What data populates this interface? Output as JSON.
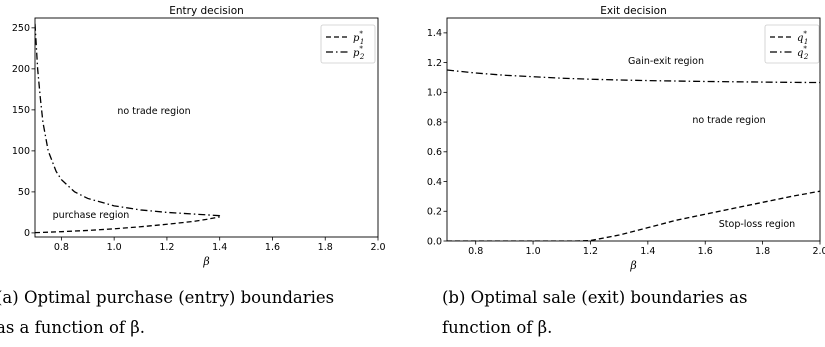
{
  "chart_data": [
    {
      "type": "line",
      "title": "Entry decision",
      "xlabel": "β",
      "ylabel": "",
      "xlim": [
        0.7,
        2.0
      ],
      "ylim": [
        -5,
        262
      ],
      "xticks": [
        "0.8",
        "1.0",
        "1.2",
        "1.4",
        "1.6",
        "1.8",
        "2.0"
      ],
      "yticks": [
        "0",
        "50",
        "100",
        "150",
        "200",
        "250"
      ],
      "legend": {
        "placement": "top-right",
        "entries": [
          {
            "label": "p",
            "sup": "*",
            "sub": "1",
            "dash": "dashed"
          },
          {
            "label": "p",
            "sup": "*",
            "sub": "2",
            "dash": "dashdot"
          }
        ]
      },
      "series": [
        {
          "name": "p1*",
          "dash": "dashed",
          "x": [
            0.7,
            0.8,
            0.9,
            1.0,
            1.1,
            1.2,
            1.3,
            1.35,
            1.4
          ],
          "y": [
            0.3,
            1.5,
            3.0,
            5.0,
            7.5,
            10.5,
            14.0,
            16.5,
            19.5
          ]
        },
        {
          "name": "p2*",
          "dash": "dashdot",
          "x": [
            0.7,
            0.71,
            0.72,
            0.73,
            0.75,
            0.78,
            0.8,
            0.85,
            0.9,
            1.0,
            1.1,
            1.2,
            1.3,
            1.35,
            1.4,
            1.405
          ],
          "y": [
            255,
            200,
            165,
            135,
            100,
            75,
            65,
            50,
            42,
            33,
            28,
            25,
            23,
            22,
            21,
            19.5
          ]
        }
      ],
      "annotations": [
        "no trade region",
        "purchase region"
      ]
    },
    {
      "type": "line",
      "title": "Exit decision",
      "xlabel": "β",
      "ylabel": "",
      "xlim": [
        0.7,
        2.0
      ],
      "ylim": [
        0,
        1.5
      ],
      "xticks": [
        "0.8",
        "1.0",
        "1.2",
        "1.4",
        "1.6",
        "1.8",
        "2.0"
      ],
      "yticks": [
        "0.0",
        "0.2",
        "0.4",
        "0.6",
        "0.8",
        "1.0",
        "1.2",
        "1.4"
      ],
      "legend": {
        "placement": "top-right",
        "entries": [
          {
            "label": "q",
            "sup": "*",
            "sub": "1",
            "dash": "dashed"
          },
          {
            "label": "q",
            "sup": "*",
            "sub": "2",
            "dash": "dashdot"
          }
        ]
      },
      "series": [
        {
          "name": "q1*",
          "dash": "dashed",
          "x": [
            0.7,
            1.0,
            1.15,
            1.2,
            1.3,
            1.4,
            1.5,
            1.6,
            1.7,
            1.8,
            1.9,
            2.0
          ],
          "y": [
            0.0,
            0.0,
            0.0,
            0.003,
            0.04,
            0.09,
            0.14,
            0.18,
            0.22,
            0.26,
            0.3,
            0.335
          ]
        },
        {
          "name": "q2*",
          "dash": "dashdot",
          "x": [
            0.7,
            0.8,
            0.9,
            1.0,
            1.1,
            1.2,
            1.3,
            1.4,
            1.5,
            1.6,
            1.7,
            1.8,
            1.9,
            2.0
          ],
          "y": [
            1.15,
            1.13,
            1.115,
            1.105,
            1.095,
            1.088,
            1.083,
            1.079,
            1.076,
            1.073,
            1.071,
            1.069,
            1.067,
            1.066
          ]
        }
      ],
      "annotations": [
        "Gain-exit region",
        "no trade region",
        "Stop-loss region"
      ]
    }
  ],
  "captions": [
    {
      "line1": "(a) Optimal purchase (entry) boundaries",
      "line2": "as a function of β."
    },
    {
      "line1": "(b) Optimal sale (exit) boundaries as",
      "line2": "function of β."
    }
  ]
}
